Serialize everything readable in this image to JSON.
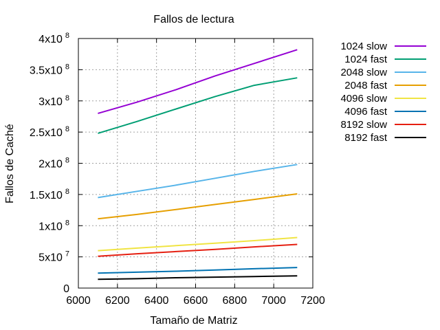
{
  "chart_data": {
    "type": "line",
    "title": "Fallos de lectura",
    "xlabel": "Tamaño de Matriz",
    "ylabel": "Fallos de Caché",
    "xlim": [
      6000,
      7200
    ],
    "ylim": [
      0,
      400000000
    ],
    "grid": true,
    "legend_placement": "outside-right",
    "x_ticks": [
      "6000",
      "6200",
      "6400",
      "6600",
      "6800",
      "7000",
      "7200"
    ],
    "y_ticks": [
      {
        "base": "0",
        "exp": "",
        "value": 0
      },
      {
        "base": "5x10",
        "exp": "7",
        "value": 50000000
      },
      {
        "base": "1x10",
        "exp": "8",
        "value": 100000000
      },
      {
        "base": "1.5x10",
        "exp": "8",
        "value": 150000000
      },
      {
        "base": "2x10",
        "exp": "8",
        "value": 200000000
      },
      {
        "base": "2.5x10",
        "exp": "8",
        "value": 250000000
      },
      {
        "base": "3x10",
        "exp": "8",
        "value": 300000000
      },
      {
        "base": "3.5x10",
        "exp": "8",
        "value": 350000000
      },
      {
        "base": "4x10",
        "exp": "8",
        "value": 400000000
      }
    ],
    "x": [
      6100,
      6300,
      6500,
      6700,
      6900,
      7120
    ],
    "series": [
      {
        "name": "1024 slow",
        "color": "#9400d3",
        "values": [
          280000000,
          298000000,
          318000000,
          340000000,
          360000000,
          382000000
        ]
      },
      {
        "name": "1024 fast",
        "color": "#009e73",
        "values": [
          248000000,
          267000000,
          287000000,
          307000000,
          325000000,
          337000000
        ]
      },
      {
        "name": "2048 slow",
        "color": "#56b4e9",
        "values": [
          145000000,
          155000000,
          165000000,
          176000000,
          187000000,
          198000000
        ]
      },
      {
        "name": "2048 fast",
        "color": "#e69f00",
        "values": [
          111000000,
          118000000,
          126000000,
          134000000,
          142000000,
          151000000
        ]
      },
      {
        "name": "4096 slow",
        "color": "#f0e442",
        "values": [
          60000000,
          64000000,
          68000000,
          72000000,
          76000000,
          81000000
        ]
      },
      {
        "name": "4096 fast",
        "color": "#0072b2",
        "values": [
          24000000,
          25500000,
          27000000,
          29000000,
          31000000,
          33000000
        ]
      },
      {
        "name": "8192 slow",
        "color": "#e51e10",
        "values": [
          51000000,
          55000000,
          58500000,
          62000000,
          66000000,
          70000000
        ]
      },
      {
        "name": "8192 fast",
        "color": "#000000",
        "values": [
          14000000,
          15000000,
          16500000,
          17500000,
          18500000,
          19500000
        ]
      }
    ]
  }
}
